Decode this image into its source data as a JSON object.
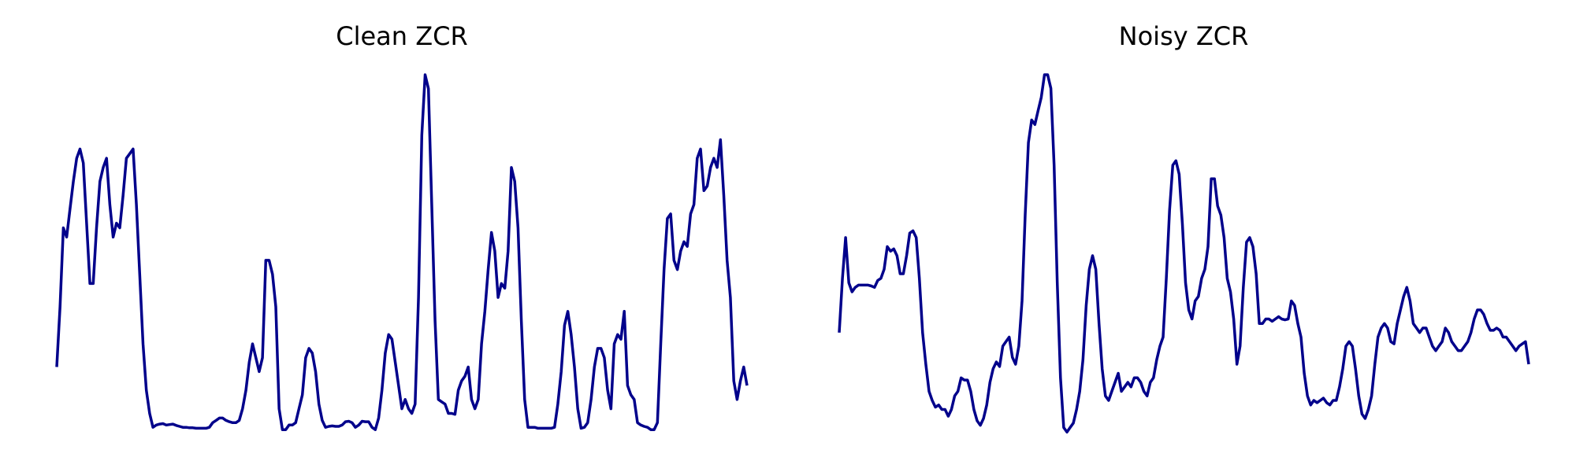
{
  "figure": {
    "background": "#ffffff",
    "line_color": "#00008b"
  },
  "chart_data": [
    {
      "type": "line",
      "title": "Clean ZCR",
      "xlabel": "",
      "ylabel": "",
      "grid": false,
      "axes_visible": false,
      "series": [
        {
          "values": [
            0.15,
            0.28,
            0.45,
            0.43,
            0.49,
            0.55,
            0.6,
            0.62,
            0.59,
            0.46,
            0.33,
            0.33,
            0.45,
            0.55,
            0.58,
            0.6,
            0.5,
            0.43,
            0.46,
            0.45,
            0.52,
            0.6,
            0.61,
            0.62,
            0.5,
            0.35,
            0.2,
            0.1,
            0.05,
            0.02,
            0.025,
            0.027,
            0.028,
            0.025,
            0.026,
            0.027,
            0.024,
            0.022,
            0.02,
            0.02,
            0.019,
            0.019,
            0.018,
            0.018,
            0.018,
            0.018,
            0.02,
            0.03,
            0.035,
            0.04,
            0.04,
            0.035,
            0.032,
            0.03,
            0.03,
            0.035,
            0.06,
            0.1,
            0.16,
            0.2,
            0.17,
            0.14,
            0.17,
            0.38,
            0.38,
            0.35,
            0.28,
            0.06,
            0.015,
            0.015,
            0.025,
            0.025,
            0.03,
            0.06,
            0.09,
            0.17,
            0.19,
            0.18,
            0.14,
            0.07,
            0.035,
            0.02,
            0.022,
            0.023,
            0.022,
            0.022,
            0.025,
            0.032,
            0.033,
            0.03,
            0.02,
            0.025,
            0.033,
            0.032,
            0.032,
            0.02,
            0.015,
            0.04,
            0.1,
            0.18,
            0.22,
            0.21,
            0.16,
            0.11,
            0.06,
            0.08,
            0.06,
            0.05,
            0.07,
            0.3,
            0.65,
            0.78,
            0.75,
            0.5,
            0.25,
            0.08,
            0.075,
            0.07,
            0.05,
            0.05,
            0.048,
            0.1,
            0.12,
            0.13,
            0.15,
            0.08,
            0.06,
            0.08,
            0.2,
            0.27,
            0.36,
            0.44,
            0.4,
            0.3,
            0.33,
            0.32,
            0.4,
            0.58,
            0.55,
            0.45,
            0.25,
            0.08,
            0.02,
            0.02,
            0.02,
            0.018,
            0.018,
            0.018,
            0.018,
            0.018,
            0.02,
            0.07,
            0.14,
            0.24,
            0.27,
            0.22,
            0.15,
            0.06,
            0.018,
            0.02,
            0.03,
            0.08,
            0.15,
            0.19,
            0.19,
            0.17,
            0.1,
            0.06,
            0.2,
            0.22,
            0.21,
            0.27,
            0.11,
            0.09,
            0.08,
            0.03,
            0.025,
            0.022,
            0.02,
            0.015,
            0.015,
            0.03,
            0.2,
            0.36,
            0.47,
            0.48,
            0.38,
            0.36,
            0.4,
            0.42,
            0.41,
            0.48,
            0.5,
            0.6,
            0.62,
            0.53,
            0.54,
            0.58,
            0.6,
            0.58,
            0.64,
            0.52,
            0.38,
            0.3,
            0.12,
            0.08,
            0.12,
            0.15,
            0.11
          ]
        }
      ]
    },
    {
      "type": "line",
      "title": "Noisy ZCR",
      "xlabel": "",
      "ylabel": "",
      "grid": false,
      "axes_visible": false,
      "series": [
        {
          "values": [
            0.23,
            0.35,
            0.44,
            0.34,
            0.32,
            0.33,
            0.335,
            0.335,
            0.335,
            0.335,
            0.333,
            0.33,
            0.345,
            0.35,
            0.37,
            0.42,
            0.41,
            0.415,
            0.4,
            0.36,
            0.36,
            0.4,
            0.45,
            0.455,
            0.44,
            0.35,
            0.23,
            0.16,
            0.1,
            0.08,
            0.065,
            0.07,
            0.06,
            0.06,
            0.045,
            0.06,
            0.09,
            0.1,
            0.13,
            0.125,
            0.125,
            0.1,
            0.06,
            0.035,
            0.025,
            0.04,
            0.07,
            0.12,
            0.15,
            0.165,
            0.155,
            0.2,
            0.21,
            0.22,
            0.175,
            0.16,
            0.2,
            0.3,
            0.49,
            0.65,
            0.7,
            0.69,
            0.72,
            0.75,
            0.8,
            0.8,
            0.77,
            0.6,
            0.34,
            0.13,
            0.02,
            0.01,
            0.02,
            0.03,
            0.06,
            0.1,
            0.17,
            0.29,
            0.37,
            0.4,
            0.37,
            0.25,
            0.15,
            0.09,
            0.08,
            0.1,
            0.12,
            0.14,
            0.1,
            0.11,
            0.12,
            0.11,
            0.13,
            0.13,
            0.12,
            0.1,
            0.09,
            0.12,
            0.13,
            0.17,
            0.2,
            0.22,
            0.35,
            0.5,
            0.6,
            0.61,
            0.58,
            0.47,
            0.34,
            0.28,
            0.26,
            0.3,
            0.31,
            0.35,
            0.37,
            0.42,
            0.57,
            0.57,
            0.51,
            0.49,
            0.44,
            0.35,
            0.32,
            0.26,
            0.16,
            0.2,
            0.33,
            0.43,
            0.44,
            0.42,
            0.36,
            0.25,
            0.25,
            0.26,
            0.26,
            0.255,
            0.26,
            0.265,
            0.26,
            0.258,
            0.26,
            0.3,
            0.29,
            0.25,
            0.22,
            0.14,
            0.09,
            0.07,
            0.08,
            0.075,
            0.08,
            0.085,
            0.075,
            0.07,
            0.08,
            0.08,
            0.11,
            0.15,
            0.2,
            0.21,
            0.2,
            0.15,
            0.09,
            0.05,
            0.04,
            0.06,
            0.09,
            0.16,
            0.22,
            0.24,
            0.25,
            0.24,
            0.21,
            0.205,
            0.25,
            0.28,
            0.31,
            0.33,
            0.3,
            0.25,
            0.24,
            0.23,
            0.24,
            0.24,
            0.22,
            0.2,
            0.19,
            0.2,
            0.21,
            0.24,
            0.23,
            0.21,
            0.2,
            0.19,
            0.19,
            0.2,
            0.21,
            0.23,
            0.26,
            0.28,
            0.28,
            0.27,
            0.25,
            0.235,
            0.235,
            0.24,
            0.235,
            0.22,
            0.22,
            0.21,
            0.2,
            0.19,
            0.2,
            0.205,
            0.21,
            0.16
          ]
        }
      ]
    }
  ]
}
